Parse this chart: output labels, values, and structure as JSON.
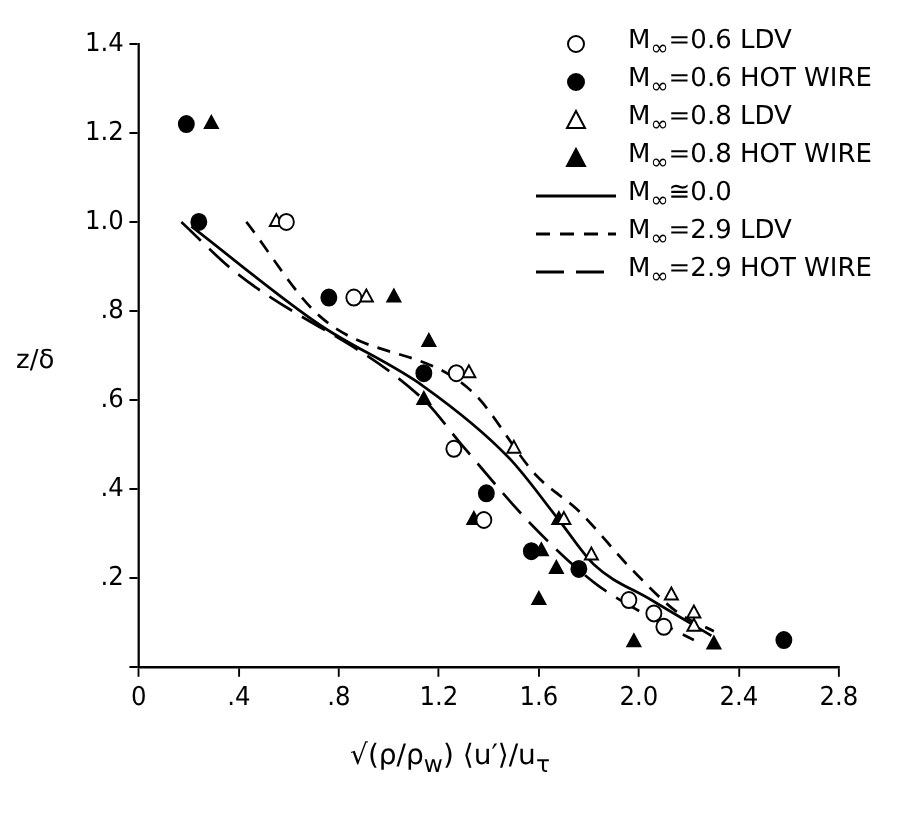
{
  "chart_data": {
    "type": "scatter",
    "xlabel": "√(ρ/ρ$_{w}$) ⟨u′⟩/u$_{τ}$",
    "ylabel": "z/δ",
    "legend": "top right",
    "grid": false,
    "xlim": [
      0,
      2.8
    ],
    "xticks": [
      0,
      {
        "value": 0.4,
        "label": ".4"
      },
      {
        "value": 0.8,
        "label": ".8"
      },
      1.2,
      1.6,
      {
        "value": 2.0,
        "label": "2.0"
      },
      2.4,
      2.8
    ],
    "ylim": [
      0,
      1.4
    ],
    "yticks": [
      {
        "value": 0,
        "label": null
      },
      {
        "value": 0.2,
        "label": ".2"
      },
      {
        "value": 0.4,
        "label": ".4"
      },
      {
        "value": 0.6,
        "label": ".6"
      },
      {
        "value": 0.8,
        "label": ".8"
      },
      {
        "value": 1.0,
        "label": "1.0"
      },
      1.2,
      1.4
    ],
    "series": [
      {
        "name": "M$_{∞}$=0.6  LDV",
        "type": "scatter",
        "marker": "circle",
        "color": "#ffffff",
        "x": [
          0.59,
          0.86,
          1.27,
          1.26,
          1.38,
          1.96,
          2.06,
          2.1
        ],
        "values": [
          1.0,
          0.83,
          0.66,
          0.49,
          0.33,
          0.15,
          0.12,
          0.09
        ]
      },
      {
        "name": "M$_{∞}$=0.6  HOT WIRE",
        "type": "scatter",
        "marker": "circle",
        "color": "#000000",
        "x": [
          0.19,
          0.24,
          0.76,
          1.14,
          1.39,
          1.57,
          1.76,
          2.58
        ],
        "values": [
          1.22,
          1.0,
          0.83,
          0.66,
          0.39,
          0.26,
          0.22,
          0.06
        ]
      },
      {
        "name": "M$_{∞}$=0.8  LDV",
        "type": "scatter",
        "marker": "triangle",
        "color": "#ffffff",
        "x": [
          0.55,
          0.91,
          1.32,
          1.5,
          1.7,
          1.81,
          2.13,
          2.22,
          2.22
        ],
        "values": [
          1.0,
          0.83,
          0.66,
          0.49,
          0.33,
          0.25,
          0.16,
          0.12,
          0.09
        ]
      },
      {
        "name": "M$_{∞}$=0.8  HOT WIRE",
        "type": "scatter",
        "marker": "triangle",
        "color": "#000000",
        "x": [
          0.29,
          1.02,
          1.16,
          1.14,
          1.34,
          1.68,
          1.61,
          1.67,
          1.6,
          1.98,
          2.3
        ],
        "values": [
          1.22,
          0.83,
          0.73,
          0.6,
          0.33,
          0.33,
          0.26,
          0.22,
          0.15,
          0.055,
          0.05
        ]
      },
      {
        "name": "M$_{∞}$≅0.0",
        "type": "line",
        "marker": "none",
        "line_style": "solid",
        "color": "#000000",
        "x": [
          0.21,
          0.72,
          1.14,
          1.48,
          1.68,
          1.82,
          2.05,
          2.29
        ],
        "values": [
          0.99,
          0.77,
          0.63,
          0.47,
          0.33,
          0.23,
          0.15,
          0.07
        ]
      },
      {
        "name": "M$_{∞}$=2.9  LDV",
        "type": "line",
        "marker": "none",
        "line_style": "dashed",
        "color": "#000000",
        "x": [
          0.43,
          0.72,
          1.33,
          1.59,
          1.76,
          1.97,
          2.16,
          2.3
        ],
        "values": [
          1.0,
          0.79,
          0.62,
          0.43,
          0.35,
          0.22,
          0.12,
          0.08
        ]
      },
      {
        "name": "M$_{∞}$=2.9  HOT WIRE",
        "type": "line",
        "marker": "none",
        "line_style": "dashed",
        "color": "#000000",
        "x": [
          0.17,
          0.38,
          1.14,
          1.29,
          1.57,
          1.82,
          2.05,
          2.22
        ],
        "values": [
          1.0,
          0.89,
          0.6,
          0.5,
          0.32,
          0.19,
          0.11,
          0.06
        ]
      }
    ]
  }
}
